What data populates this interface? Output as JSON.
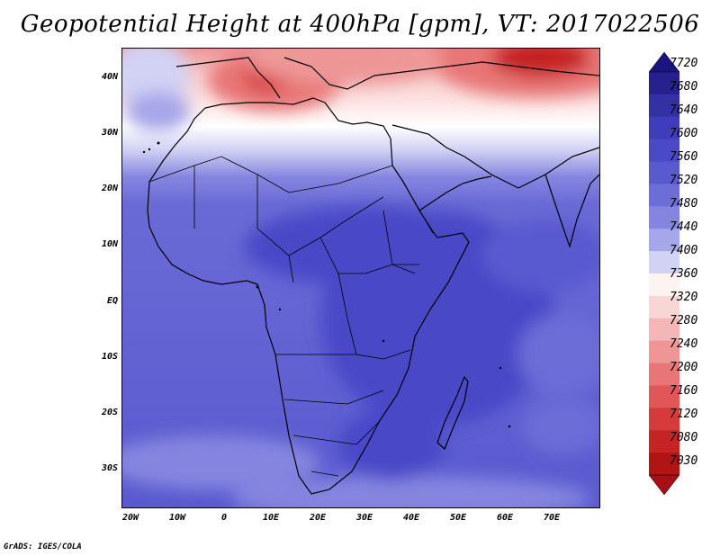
{
  "title": "Geopotential Height at 400hPa [gpm], VT: 2017022506",
  "footer": "GrADS: IGES/COLA",
  "lat_labels": [
    "40N",
    "30N",
    "20N",
    "10N",
    "EQ",
    "10S",
    "20S",
    "30S"
  ],
  "lon_labels": [
    "20W",
    "10W",
    "0",
    "10E",
    "20E",
    "30E",
    "40E",
    "50E",
    "60E",
    "70E"
  ],
  "colorbar": {
    "labels": [
      "7720",
      "7680",
      "7640",
      "7600",
      "7560",
      "7520",
      "7480",
      "7440",
      "7400",
      "7360",
      "7320",
      "7280",
      "7240",
      "7200",
      "7160",
      "7120",
      "7080",
      "7030"
    ],
    "colors": [
      "#27208f",
      "#3431a5",
      "#3f3dbc",
      "#4a49c8",
      "#5a5ad0",
      "#6d6dd8",
      "#8585e0",
      "#a6a6ea",
      "#d2d2f4",
      "#fdf3f3",
      "#f9d6d6",
      "#f4b6b6",
      "#ee9696",
      "#e87676",
      "#e15656",
      "#d53b3b",
      "#c52424",
      "#b01414"
    ],
    "top_arrow_color": "#1a1480",
    "bottom_arrow_color": "#a50f15"
  }
}
